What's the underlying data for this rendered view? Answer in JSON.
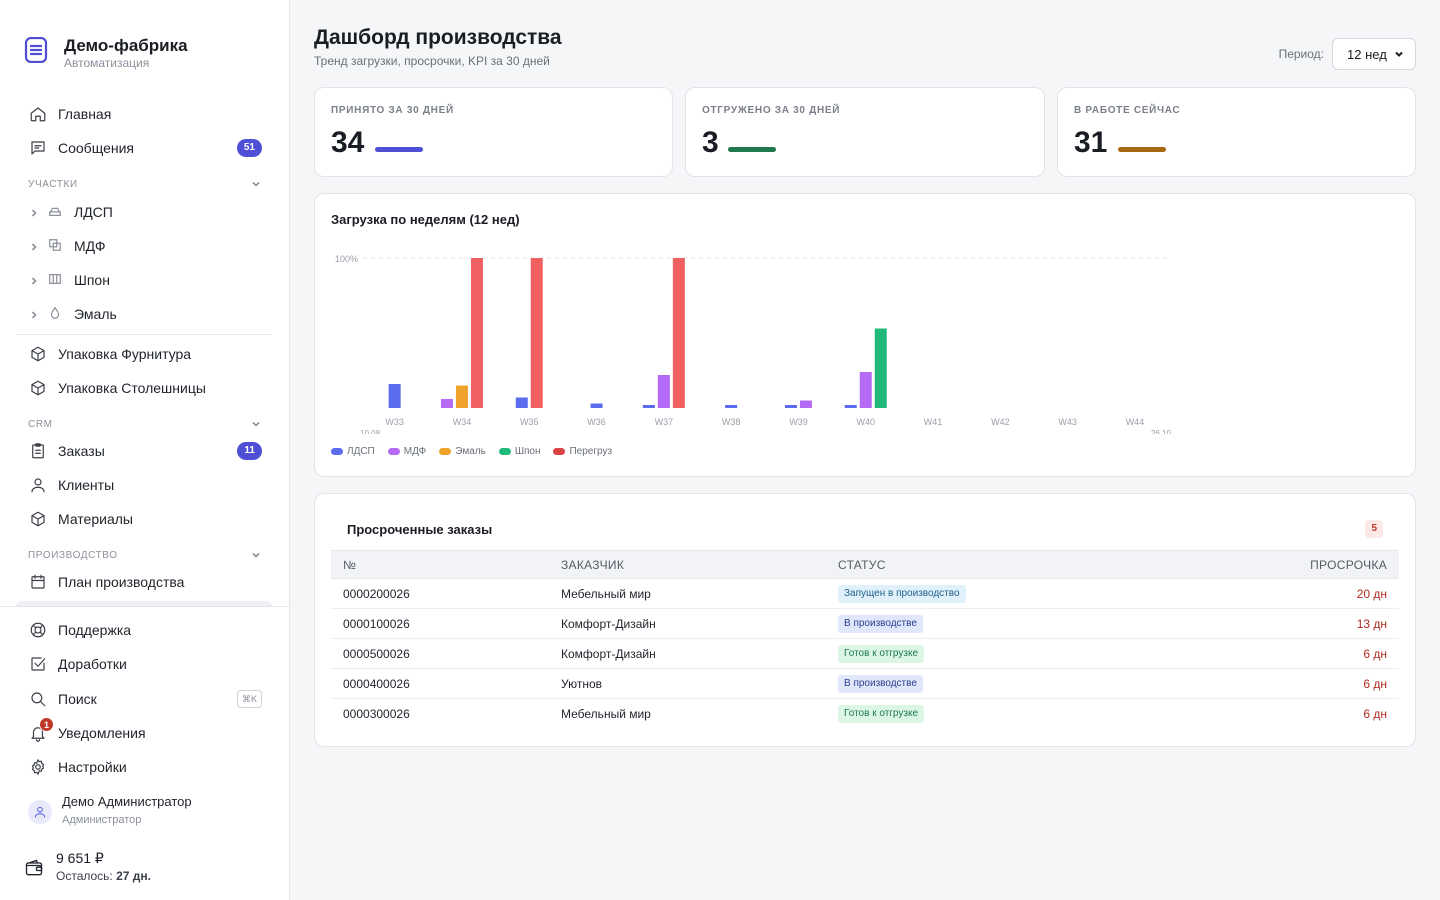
{
  "app": {
    "title": "Демо-фабрика",
    "subtitle": "Автоматизация"
  },
  "sidebar": {
    "main": [
      {
        "label": "Главная",
        "icon": "home-icon"
      },
      {
        "label": "Сообщения",
        "icon": "message-icon",
        "badge": "51"
      }
    ],
    "sections": {
      "participants": "УЧАСТКИ",
      "crm": "CRM",
      "production": "ПРОИЗВОДСТВО"
    },
    "participants": [
      {
        "label": "ЛДСП",
        "icon": "layers-icon"
      },
      {
        "label": "МДФ",
        "icon": "copy-icon"
      },
      {
        "label": "Шпон",
        "icon": "columns-icon"
      },
      {
        "label": "Эмаль",
        "icon": "drop-icon"
      }
    ],
    "packing": [
      {
        "label": "Упаковка Фурнитура",
        "icon": "box-icon"
      },
      {
        "label": "Упаковка Столешницы",
        "icon": "box-icon"
      }
    ],
    "crm": [
      {
        "label": "Заказы",
        "icon": "clipboard-icon",
        "badge": "11"
      },
      {
        "label": "Клиенты",
        "icon": "user-icon"
      },
      {
        "label": "Материалы",
        "icon": "box-icon"
      }
    ],
    "production": [
      {
        "label": "План производства",
        "icon": "calendar-icon"
      }
    ],
    "bottom": [
      {
        "label": "Поддержка",
        "icon": "lifebuoy-icon"
      },
      {
        "label": "Доработки",
        "icon": "check-square-icon"
      },
      {
        "label": "Поиск",
        "icon": "search-icon",
        "shortcut": "⌘K"
      },
      {
        "label": "Уведомления",
        "icon": "bell-icon",
        "badge": "1"
      },
      {
        "label": "Настройки",
        "icon": "gear-icon"
      }
    ],
    "user": {
      "name": "Демо Администратор",
      "role": "Администратор"
    },
    "wallet": {
      "amount": "9 651 ₽",
      "left_label": "Осталось:",
      "left_value": "27 дн."
    }
  },
  "header": {
    "title": "Дашборд производства",
    "subtitle": "Тренд загрузки, просрочки, KPI за 30 дней",
    "period_label": "Период:",
    "period_value": "12 нед"
  },
  "kpis": [
    {
      "label": "ПРИНЯТО ЗА 30 ДНЕЙ",
      "value": "34",
      "color": "#4f4fd6"
    },
    {
      "label": "ОТГРУЖЕНО ЗА 30 ДНЕЙ",
      "value": "3",
      "color": "#1e7a4d"
    },
    {
      "label": "В РАБОТЕ СЕЙЧАС",
      "value": "31",
      "color": "#a8680f"
    }
  ],
  "chart_data": {
    "type": "bar",
    "title": "Загрузка по неделям (12 нед)",
    "y_label_top": "100%",
    "ylim": [
      0,
      100
    ],
    "categories": [
      "W33",
      "W34",
      "W35",
      "W36",
      "W37",
      "W38",
      "W39",
      "W40",
      "W41",
      "W42",
      "W43",
      "W44"
    ],
    "date_labels": {
      "first": "10.08",
      "last": "26.10"
    },
    "legend_position": "bottom-left",
    "series": [
      {
        "name": "ЛДСП",
        "color": "#5b6cf0",
        "values": [
          16,
          0,
          7,
          3,
          2,
          2,
          2,
          1,
          0,
          0,
          0,
          0
        ]
      },
      {
        "name": "МДФ",
        "color": "#b46af5",
        "values": [
          0,
          6,
          0,
          0,
          22,
          0,
          5,
          24,
          0,
          0,
          0,
          0
        ]
      },
      {
        "name": "Эмаль",
        "color": "#f0a32a",
        "values": [
          0,
          15,
          0,
          0,
          0,
          0,
          0,
          0,
          0,
          0,
          0,
          0
        ]
      },
      {
        "name": "Шпон",
        "color": "#21b97a",
        "values": [
          0,
          0,
          0,
          0,
          0,
          0,
          0,
          53,
          0,
          0,
          0,
          0
        ]
      },
      {
        "name": "Перегруз",
        "color": "#f06060",
        "legend_color": "#d94343",
        "values": [
          0,
          100,
          100,
          0,
          100,
          0,
          0,
          0,
          0,
          0,
          0,
          0
        ]
      }
    ]
  },
  "overdue": {
    "title": "Просроченные заказы",
    "count": "5",
    "columns": [
      "№",
      "ЗАКАЗЧИК",
      "СТАТУС",
      "ПРОСРОЧКА"
    ],
    "rows": [
      {
        "number": "0000200026",
        "customer": "Мебельный мир",
        "status": "Запущен в производство",
        "status_bg": "#e1f1fb",
        "status_fg": "#1f5f8a",
        "delay": "20 дн"
      },
      {
        "number": "0000100026",
        "customer": "Комфорт-Дизайн",
        "status": "В производстве",
        "status_bg": "#e1e7fb",
        "status_fg": "#2a3f8f",
        "delay": "13 дн"
      },
      {
        "number": "0000500026",
        "customer": "Комфорт-Дизайн",
        "status": "Готов к отгрузке",
        "status_bg": "#dcf6e6",
        "status_fg": "#1e7a4d",
        "delay": "6 дн"
      },
      {
        "number": "0000400026",
        "customer": "Уютнов",
        "status": "В производстве",
        "status_bg": "#e1e7fb",
        "status_fg": "#2a3f8f",
        "delay": "6 дн"
      },
      {
        "number": "0000300026",
        "customer": "Мебельный мир",
        "status": "Готов к отгрузке",
        "status_bg": "#dcf6e6",
        "status_fg": "#1e7a4d",
        "delay": "6 дн"
      }
    ]
  }
}
